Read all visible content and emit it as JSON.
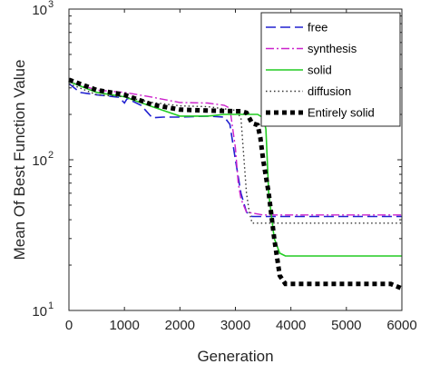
{
  "chart_data": {
    "type": "line",
    "xlabel": "Generation",
    "ylabel": "Mean Of Best Function Value",
    "xlim": [
      0,
      6000
    ],
    "ylim": [
      10,
      1000
    ],
    "yscale": "log",
    "legend_position": "top-right",
    "grid": false,
    "x_ticks": [
      {
        "value": 0,
        "label": "0"
      },
      {
        "value": 1000,
        "label": "1000"
      },
      {
        "value": 2000,
        "label": "2000"
      },
      {
        "value": 3000,
        "label": "3000"
      },
      {
        "value": 4000,
        "label": "4000"
      },
      {
        "value": 5000,
        "label": "5000"
      },
      {
        "value": 6000,
        "label": "6000"
      }
    ],
    "y_ticks": [
      {
        "value": 10,
        "base": "10",
        "exp": "1"
      },
      {
        "value": 100,
        "base": "10",
        "exp": "2"
      },
      {
        "value": 1000,
        "base": "10",
        "exp": "3"
      }
    ],
    "series": [
      {
        "name": "free",
        "color": "#2121d0",
        "dash": "dashed",
        "points": [
          [
            0,
            320
          ],
          [
            200,
            280
          ],
          [
            500,
            270
          ],
          [
            900,
            260
          ],
          [
            1000,
            238
          ],
          [
            1050,
            255
          ],
          [
            1300,
            230
          ],
          [
            1500,
            190
          ],
          [
            1700,
            192
          ],
          [
            2000,
            192
          ],
          [
            2500,
            195
          ],
          [
            2800,
            192
          ],
          [
            2900,
            172
          ],
          [
            3000,
            100
          ],
          [
            3100,
            60
          ],
          [
            3200,
            45
          ],
          [
            3300,
            42
          ],
          [
            3500,
            42
          ],
          [
            4000,
            42
          ],
          [
            6000,
            42
          ]
        ]
      },
      {
        "name": "synthesis",
        "color": "#cc22cc",
        "dash": "dashdot",
        "points": [
          [
            0,
            330
          ],
          [
            500,
            290
          ],
          [
            1000,
            280
          ],
          [
            1500,
            260
          ],
          [
            2000,
            240
          ],
          [
            2500,
            238
          ],
          [
            2800,
            230
          ],
          [
            2900,
            220
          ],
          [
            3000,
            120
          ],
          [
            3050,
            70
          ],
          [
            3100,
            55
          ],
          [
            3200,
            45
          ],
          [
            3500,
            43
          ],
          [
            4000,
            43
          ],
          [
            6000,
            43
          ]
        ]
      },
      {
        "name": "solid",
        "color": "#22cc22",
        "dash": "solid",
        "points": [
          [
            0,
            330
          ],
          [
            500,
            280
          ],
          [
            1000,
            262
          ],
          [
            1500,
            225
          ],
          [
            2000,
            195
          ],
          [
            2500,
            195
          ],
          [
            2800,
            200
          ],
          [
            3000,
            200
          ],
          [
            3200,
            200
          ],
          [
            3400,
            200
          ],
          [
            3500,
            190
          ],
          [
            3550,
            160
          ],
          [
            3600,
            60
          ],
          [
            3700,
            30
          ],
          [
            3800,
            24
          ],
          [
            3900,
            23
          ],
          [
            6000,
            23
          ]
        ]
      },
      {
        "name": "diffusion",
        "color": "#333333",
        "dash": "dotted",
        "points": [
          [
            0,
            320
          ],
          [
            500,
            270
          ],
          [
            1000,
            262
          ],
          [
            1500,
            240
          ],
          [
            2000,
            228
          ],
          [
            2500,
            225
          ],
          [
            3000,
            213
          ],
          [
            3100,
            190
          ],
          [
            3200,
            60
          ],
          [
            3250,
            45
          ],
          [
            3300,
            38
          ],
          [
            4000,
            38
          ],
          [
            6000,
            38
          ]
        ]
      },
      {
        "name": "Entirely solid",
        "color": "#000000",
        "dash": "thickdot",
        "points": [
          [
            0,
            340
          ],
          [
            500,
            290
          ],
          [
            1000,
            270
          ],
          [
            1500,
            232
          ],
          [
            2000,
            215
          ],
          [
            2500,
            212
          ],
          [
            3000,
            210
          ],
          [
            3100,
            210
          ],
          [
            3200,
            205
          ],
          [
            3300,
            175
          ],
          [
            3400,
            170
          ],
          [
            3450,
            140
          ],
          [
            3500,
            100
          ],
          [
            3600,
            60
          ],
          [
            3700,
            30
          ],
          [
            3800,
            17
          ],
          [
            3900,
            15
          ],
          [
            4500,
            15
          ],
          [
            5000,
            15
          ],
          [
            5800,
            15
          ],
          [
            6000,
            14
          ]
        ]
      }
    ]
  }
}
